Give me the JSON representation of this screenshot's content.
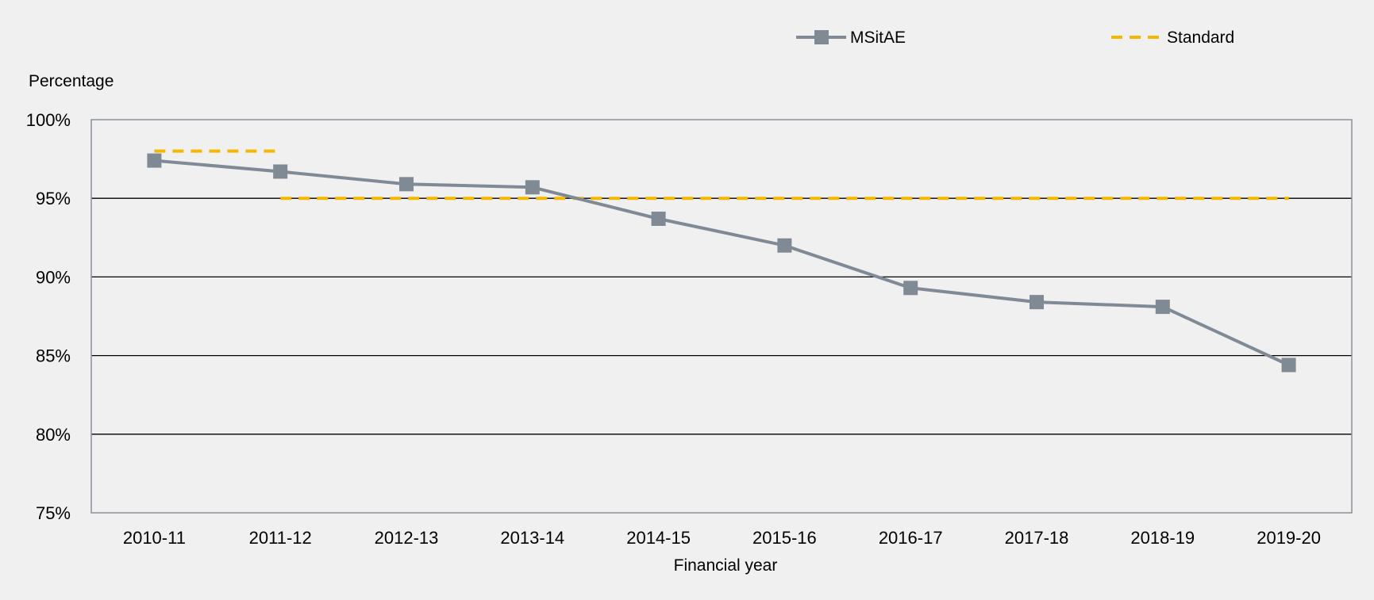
{
  "chart_data": {
    "type": "line",
    "title": "",
    "xlabel": "Financial year",
    "ylabel": "Percentage",
    "categories": [
      "2010-11",
      "2011-12",
      "2012-13",
      "2013-14",
      "2014-15",
      "2015-16",
      "2016-17",
      "2017-18",
      "2018-19",
      "2019-20"
    ],
    "ylim": [
      75,
      100
    ],
    "yticks": [
      75,
      80,
      85,
      90,
      95,
      100
    ],
    "ytick_labels": [
      "75%",
      "80%",
      "85%",
      "90%",
      "95%",
      "100%"
    ],
    "grid": "horizontal",
    "legend_position": "top",
    "series": [
      {
        "name": "MSitAE",
        "style": "solid-with-square-markers",
        "color": "#808a95",
        "values": [
          97.4,
          96.7,
          95.9,
          95.7,
          93.7,
          92.0,
          89.3,
          88.4,
          88.1,
          84.4
        ]
      },
      {
        "name": "Standard",
        "style": "dashed",
        "color": "#f5b800",
        "segments": [
          {
            "from": "2010-11",
            "to": "2011-12",
            "value": 98
          },
          {
            "from": "2011-12",
            "to": "2019-20",
            "value": 95
          }
        ]
      }
    ]
  }
}
